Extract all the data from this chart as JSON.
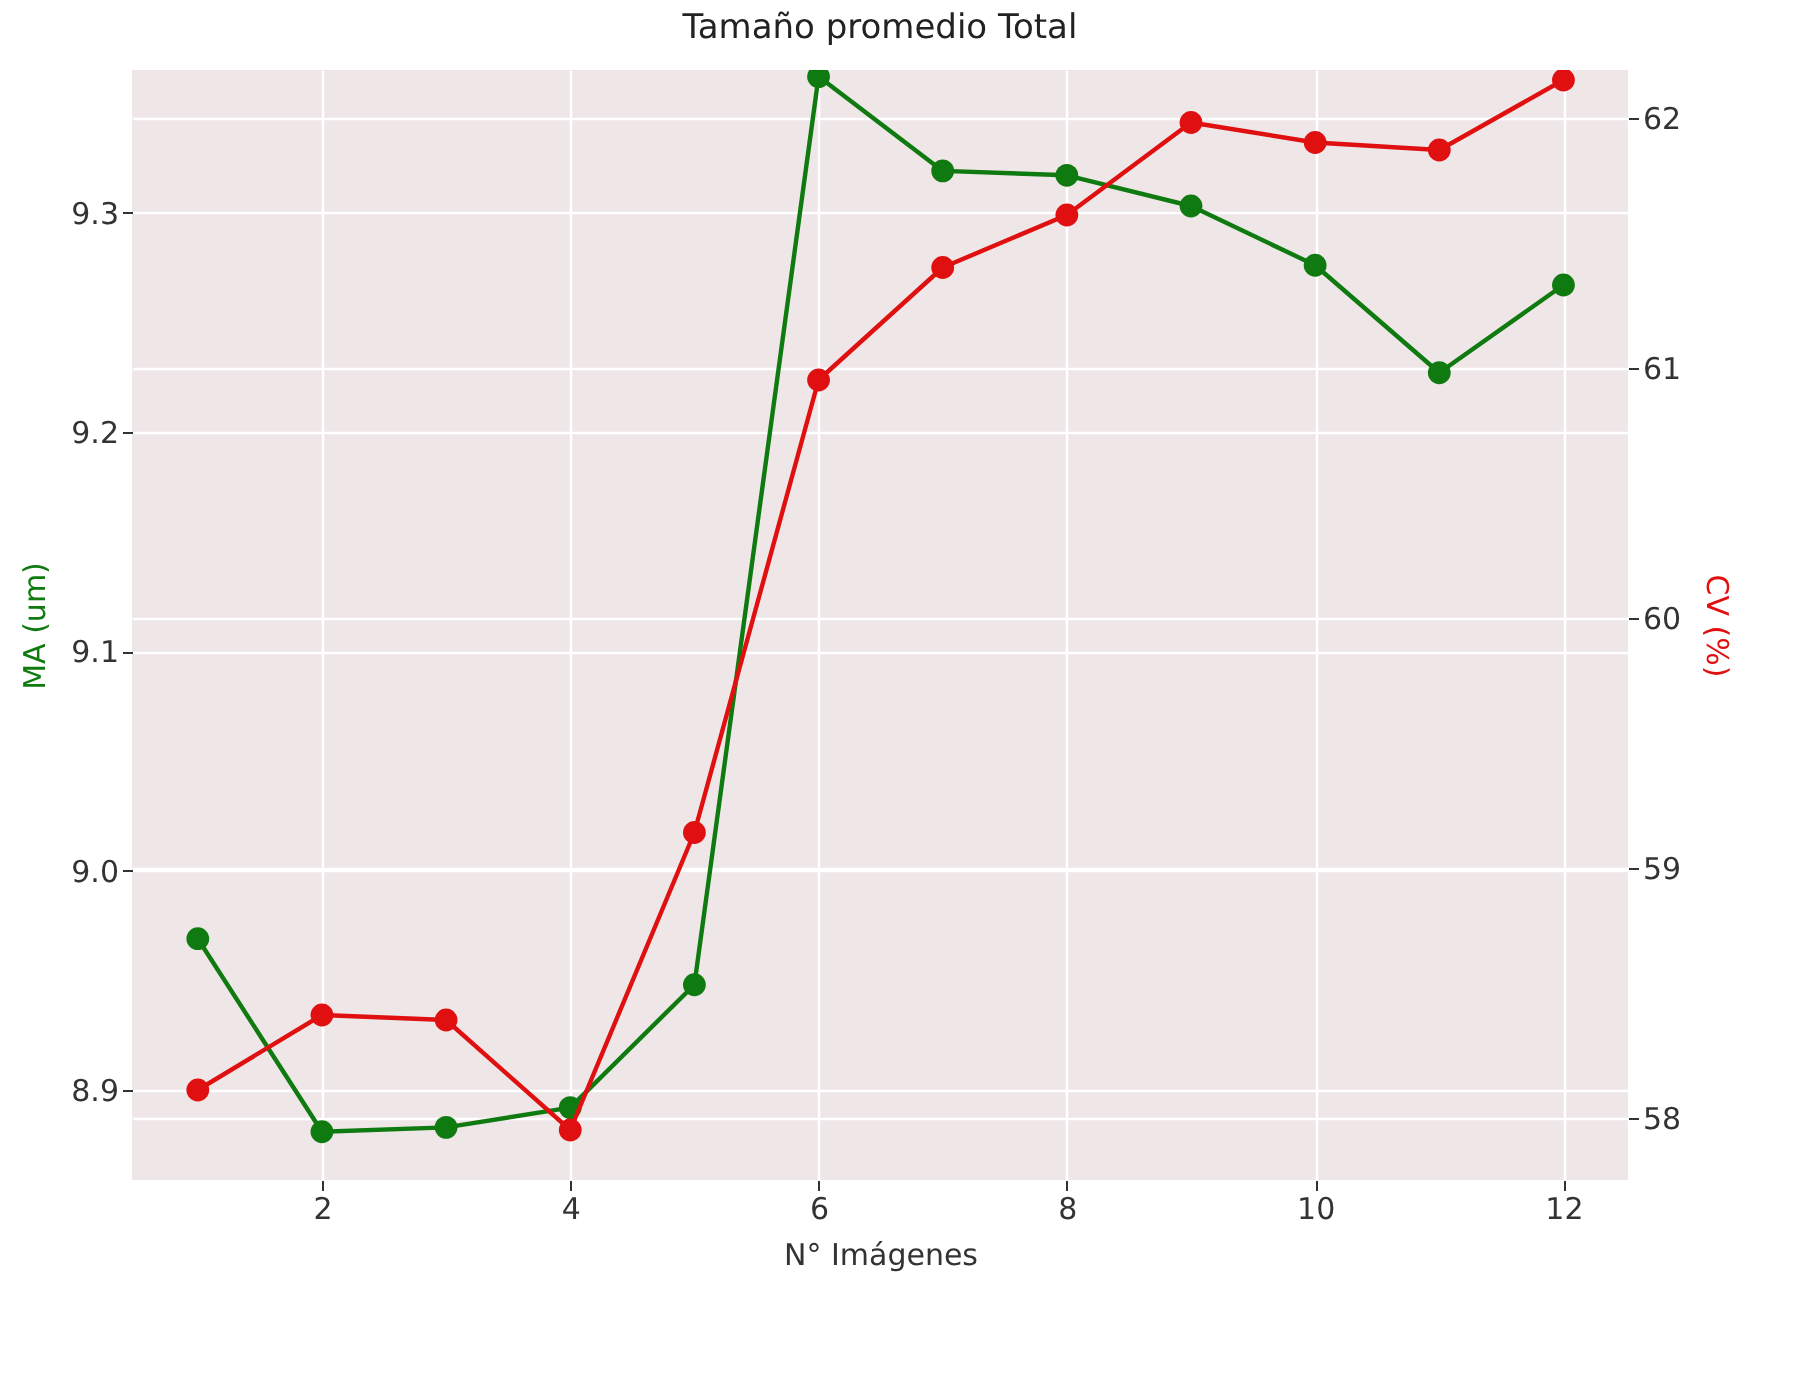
{
  "chart_data": {
    "type": "line",
    "title": "Tamaño promedio Total",
    "xlabel": "N° Imágenes",
    "ylabel": "MA (um)",
    "y2label": "CV (%)",
    "x": [
      1,
      2,
      3,
      4,
      5,
      6,
      7,
      8,
      9,
      10,
      11,
      12
    ],
    "series": [
      {
        "color": "#0f7a0f",
        "values": [
          8.969,
          8.881,
          8.883,
          8.892,
          8.948,
          9.362,
          9.319,
          9.317,
          9.303,
          9.276,
          9.227,
          9.267
        ]
      },
      {
        "color": "#e01010",
        "axis": "y2",
        "values": [
          58.11,
          58.41,
          58.39,
          57.95,
          59.14,
          60.95,
          61.4,
          61.61,
          61.98,
          61.9,
          61.87,
          62.15
        ]
      }
    ],
    "xlim": [
      0.47,
      12.52
    ],
    "xticks": [
      2,
      4,
      6,
      8,
      10,
      12
    ],
    "ylim": [
      8.859,
      9.365
    ],
    "yticks": [
      8.9,
      {
        "value": 9,
        "label": "9.0"
      },
      9.1,
      9.2,
      9.3
    ],
    "y2lim": [
      57.75,
      62.19
    ],
    "y2ticks": [
      58,
      59,
      60,
      61,
      62
    ],
    "grid": true,
    "marker": "circle",
    "line_style": "solid"
  }
}
